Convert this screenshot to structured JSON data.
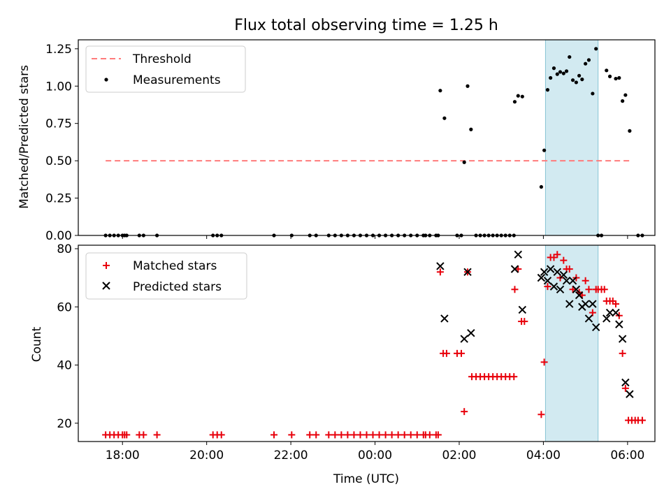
{
  "title": "Flux total observing time = 1.25 h",
  "colors": {
    "threshold": "#ff7b7b",
    "measurement": "#000000",
    "matched": "#e8000b",
    "predicted": "#000000",
    "shade": "#add8e6"
  },
  "chart_data": [
    {
      "id": "top",
      "type": "scatter",
      "title": "Flux total observing time = 1.25 h",
      "xlabel": "",
      "ylabel": "Matched/Predicted stars",
      "xlim": [
        16.95,
        30.65
      ],
      "ylim": [
        0,
        1.31
      ],
      "yticks": [
        0,
        0.25,
        0.5,
        0.75,
        1.0,
        1.25
      ],
      "ytick_labels": [
        "0.00",
        "0.25",
        "0.50",
        "0.75",
        "1.00",
        "1.25"
      ],
      "xticks": [
        18,
        20,
        22,
        24,
        26,
        28,
        30
      ],
      "legend": {
        "position": "top-left",
        "entries": [
          "Threshold",
          "Measurements"
        ]
      },
      "threshold": {
        "name": "Threshold",
        "y": 0.5,
        "x": [
          17.6,
          30.05
        ]
      },
      "shade_x": [
        28.05,
        29.3
      ],
      "series": [
        {
          "name": "Measurements",
          "points": [
            [
              17.6,
              0
            ],
            [
              17.7,
              0
            ],
            [
              17.8,
              0
            ],
            [
              17.9,
              0
            ],
            [
              18.0,
              0
            ],
            [
              18.05,
              0
            ],
            [
              18.1,
              0
            ],
            [
              18.4,
              0
            ],
            [
              18.5,
              0
            ],
            [
              18.82,
              0
            ],
            [
              20.15,
              0
            ],
            [
              20.25,
              0
            ],
            [
              20.35,
              0
            ],
            [
              21.6,
              0
            ],
            [
              22.02,
              0
            ],
            [
              22.45,
              0
            ],
            [
              22.6,
              0
            ],
            [
              22.9,
              0
            ],
            [
              23.05,
              0
            ],
            [
              23.2,
              0
            ],
            [
              23.35,
              0
            ],
            [
              23.5,
              0
            ],
            [
              23.65,
              0
            ],
            [
              23.8,
              0
            ],
            [
              23.95,
              0
            ],
            [
              24.1,
              0
            ],
            [
              24.25,
              0
            ],
            [
              24.4,
              0
            ],
            [
              24.55,
              0
            ],
            [
              24.7,
              0
            ],
            [
              24.85,
              0
            ],
            [
              25.0,
              0
            ],
            [
              25.15,
              0
            ],
            [
              25.2,
              0
            ],
            [
              25.3,
              0
            ],
            [
              25.45,
              0
            ],
            [
              25.5,
              0
            ],
            [
              25.55,
              0.97
            ],
            [
              25.65,
              0.785
            ],
            [
              25.95,
              0
            ],
            [
              26.05,
              0
            ],
            [
              26.12,
              0.49
            ],
            [
              26.2,
              1.0
            ],
            [
              26.28,
              0.71
            ],
            [
              26.4,
              0
            ],
            [
              26.5,
              0
            ],
            [
              26.6,
              0
            ],
            [
              26.7,
              0
            ],
            [
              26.8,
              0
            ],
            [
              26.9,
              0
            ],
            [
              27.0,
              0
            ],
            [
              27.1,
              0
            ],
            [
              27.2,
              0
            ],
            [
              27.3,
              0
            ],
            [
              27.32,
              0.895
            ],
            [
              27.4,
              0.935
            ],
            [
              27.5,
              0.93
            ],
            [
              27.95,
              0.325
            ],
            [
              28.02,
              0.57
            ],
            [
              28.1,
              0.975
            ],
            [
              28.17,
              1.055
            ],
            [
              28.25,
              1.12
            ],
            [
              28.33,
              1.08
            ],
            [
              28.4,
              1.095
            ],
            [
              28.48,
              1.085
            ],
            [
              28.55,
              1.1
            ],
            [
              28.62,
              1.195
            ],
            [
              28.7,
              1.04
            ],
            [
              28.78,
              1.025
            ],
            [
              28.85,
              1.07
            ],
            [
              28.92,
              1.045
            ],
            [
              29.0,
              1.15
            ],
            [
              29.08,
              1.175
            ],
            [
              29.17,
              0.95
            ],
            [
              29.25,
              1.25
            ],
            [
              29.3,
              0
            ],
            [
              29.38,
              0
            ],
            [
              29.5,
              1.105
            ],
            [
              29.58,
              1.065
            ],
            [
              29.72,
              1.05
            ],
            [
              29.8,
              1.055
            ],
            [
              29.88,
              0.9
            ],
            [
              29.95,
              0.94
            ],
            [
              30.05,
              0.7
            ],
            [
              30.25,
              0
            ],
            [
              30.35,
              0
            ]
          ]
        }
      ]
    },
    {
      "id": "bottom",
      "type": "scatter",
      "xlabel": "Time (UTC)",
      "ylabel": "Count",
      "xlim": [
        16.95,
        30.65
      ],
      "ylim": [
        13.7,
        81.2
      ],
      "yticks": [
        20,
        40,
        60,
        80
      ],
      "ytick_labels": [
        "20",
        "40",
        "60",
        "80"
      ],
      "xticks": [
        18,
        20,
        22,
        24,
        26,
        28,
        30
      ],
      "xtick_labels": [
        "18:00",
        "20:00",
        "22:00",
        "00:00",
        "02:00",
        "04:00",
        "06:00"
      ],
      "legend": {
        "position": "top-left",
        "entries": [
          "Matched stars",
          "Predicted stars"
        ]
      },
      "shade_x": [
        28.05,
        29.3
      ],
      "series": [
        {
          "name": "Matched stars",
          "marker": "+",
          "points": [
            [
              17.6,
              16
            ],
            [
              17.7,
              16
            ],
            [
              17.8,
              16
            ],
            [
              17.9,
              16
            ],
            [
              18.0,
              16
            ],
            [
              18.05,
              16
            ],
            [
              18.1,
              16
            ],
            [
              18.4,
              16
            ],
            [
              18.5,
              16
            ],
            [
              18.82,
              16
            ],
            [
              20.15,
              16
            ],
            [
              20.25,
              16
            ],
            [
              20.35,
              16
            ],
            [
              21.6,
              16
            ],
            [
              22.02,
              16
            ],
            [
              22.45,
              16
            ],
            [
              22.6,
              16
            ],
            [
              22.9,
              16
            ],
            [
              23.05,
              16
            ],
            [
              23.2,
              16
            ],
            [
              23.35,
              16
            ],
            [
              23.5,
              16
            ],
            [
              23.65,
              16
            ],
            [
              23.8,
              16
            ],
            [
              23.95,
              16
            ],
            [
              24.1,
              16
            ],
            [
              24.25,
              16
            ],
            [
              24.4,
              16
            ],
            [
              24.55,
              16
            ],
            [
              24.7,
              16
            ],
            [
              24.85,
              16
            ],
            [
              25.0,
              16
            ],
            [
              25.15,
              16
            ],
            [
              25.2,
              16
            ],
            [
              25.3,
              16
            ],
            [
              25.45,
              16
            ],
            [
              25.5,
              16
            ],
            [
              25.55,
              72
            ],
            [
              25.62,
              44
            ],
            [
              25.7,
              44
            ],
            [
              25.95,
              44
            ],
            [
              26.05,
              44
            ],
            [
              26.12,
              24
            ],
            [
              26.2,
              72
            ],
            [
              26.3,
              36
            ],
            [
              26.4,
              36
            ],
            [
              26.5,
              36
            ],
            [
              26.6,
              36
            ],
            [
              26.7,
              36
            ],
            [
              26.8,
              36
            ],
            [
              26.9,
              36
            ],
            [
              27.0,
              36
            ],
            [
              27.1,
              36
            ],
            [
              27.2,
              36
            ],
            [
              27.3,
              36
            ],
            [
              27.32,
              66
            ],
            [
              27.4,
              73
            ],
            [
              27.48,
              55
            ],
            [
              27.55,
              55
            ],
            [
              27.95,
              23
            ],
            [
              28.02,
              41
            ],
            [
              28.1,
              67
            ],
            [
              28.17,
              77
            ],
            [
              28.25,
              77
            ],
            [
              28.33,
              78
            ],
            [
              28.4,
              70
            ],
            [
              28.48,
              76
            ],
            [
              28.55,
              73
            ],
            [
              28.62,
              73
            ],
            [
              28.7,
              66
            ],
            [
              28.78,
              70
            ],
            [
              28.85,
              65
            ],
            [
              28.92,
              64
            ],
            [
              29.0,
              69
            ],
            [
              29.08,
              66
            ],
            [
              29.17,
              58
            ],
            [
              29.25,
              66
            ],
            [
              29.3,
              66
            ],
            [
              29.38,
              66
            ],
            [
              29.45,
              66
            ],
            [
              29.5,
              62
            ],
            [
              29.58,
              62
            ],
            [
              29.65,
              62
            ],
            [
              29.72,
              61
            ],
            [
              29.8,
              57
            ],
            [
              29.88,
              44
            ],
            [
              29.95,
              32
            ],
            [
              30.02,
              21
            ],
            [
              30.1,
              21
            ],
            [
              30.18,
              21
            ],
            [
              30.25,
              21
            ],
            [
              30.35,
              21
            ]
          ]
        },
        {
          "name": "Predicted stars",
          "marker": "x",
          "points": [
            [
              25.55,
              74
            ],
            [
              25.65,
              56
            ],
            [
              26.12,
              49
            ],
            [
              26.2,
              72
            ],
            [
              26.28,
              51
            ],
            [
              27.32,
              73
            ],
            [
              27.4,
              78
            ],
            [
              27.5,
              59
            ],
            [
              27.95,
              70
            ],
            [
              28.02,
              72
            ],
            [
              28.1,
              69
            ],
            [
              28.17,
              73
            ],
            [
              28.25,
              67
            ],
            [
              28.33,
              72
            ],
            [
              28.4,
              66
            ],
            [
              28.48,
              71
            ],
            [
              28.55,
              69
            ],
            [
              28.62,
              61
            ],
            [
              28.7,
              69
            ],
            [
              28.78,
              66
            ],
            [
              28.85,
              64
            ],
            [
              28.92,
              60
            ],
            [
              29.0,
              61
            ],
            [
              29.08,
              56
            ],
            [
              29.17,
              61
            ],
            [
              29.25,
              53
            ],
            [
              29.5,
              56
            ],
            [
              29.58,
              58
            ],
            [
              29.72,
              58
            ],
            [
              29.8,
              54
            ],
            [
              29.88,
              49
            ],
            [
              29.95,
              34
            ],
            [
              30.05,
              30
            ]
          ]
        }
      ]
    }
  ]
}
